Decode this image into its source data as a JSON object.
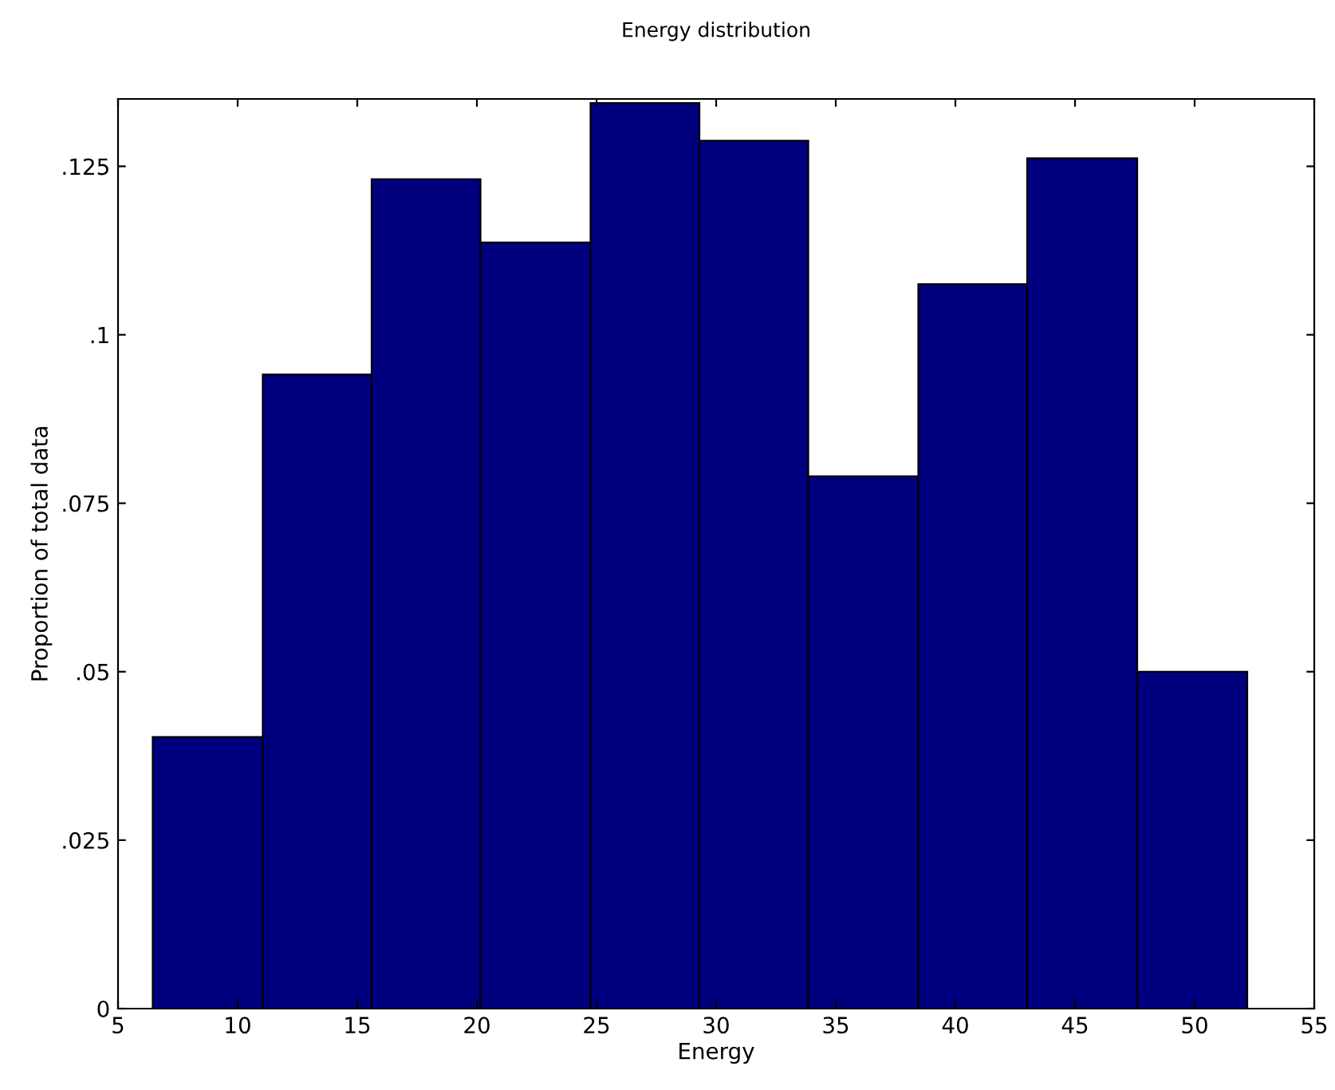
{
  "chart_data": {
    "type": "histogram",
    "title": "Energy distribution",
    "xlabel": "Energy",
    "ylabel": "Proportion of total data",
    "bins": [
      6.45,
      11.05,
      15.6,
      20.15,
      24.75,
      29.3,
      33.85,
      38.45,
      43.0,
      47.6,
      52.2
    ],
    "values": [
      0.0403,
      0.0941,
      0.1231,
      0.1137,
      0.1344,
      0.1288,
      0.079,
      0.1075,
      0.1262,
      0.05
    ],
    "color": "#00007f",
    "xlim": [
      5,
      55
    ],
    "xticks": [
      5,
      10,
      15,
      20,
      25,
      30,
      35,
      40,
      45,
      50,
      55
    ],
    "ylim": [
      0,
      0.135
    ],
    "yticks": [
      {
        "value": 0,
        "label": "0"
      },
      {
        "value": 0.025,
        "label": ".025"
      },
      {
        "value": 0.05,
        "label": ".05"
      },
      {
        "value": 0.075,
        "label": ".075"
      },
      {
        "value": 0.1,
        "label": ".1"
      },
      {
        "value": 0.125,
        "label": ".125"
      }
    ],
    "grid": false,
    "legend": false
  }
}
